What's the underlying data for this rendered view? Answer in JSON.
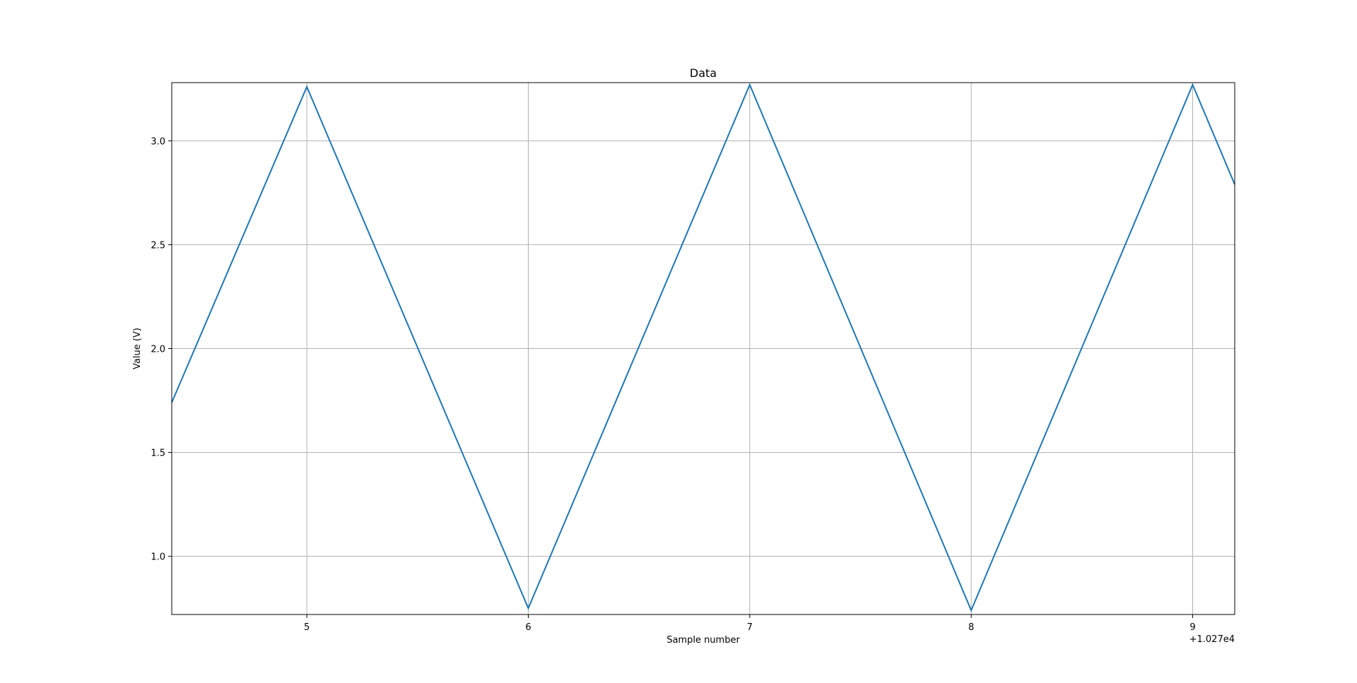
{
  "chart_data": {
    "type": "line",
    "title": "Data",
    "xlabel": "Sample number",
    "ylabel": "Value (V)",
    "x_offset_label": "+1.027e4",
    "xlim": [
      10274.39,
      10279.19
    ],
    "ylim": [
      0.72,
      3.28
    ],
    "x_ticks": [
      {
        "value": 10275,
        "label": "5"
      },
      {
        "value": 10276,
        "label": "6"
      },
      {
        "value": 10277,
        "label": "7"
      },
      {
        "value": 10278,
        "label": "8"
      },
      {
        "value": 10279,
        "label": "9"
      }
    ],
    "y_ticks": [
      {
        "value": 1.0,
        "label": "1.0"
      },
      {
        "value": 1.5,
        "label": "1.5"
      },
      {
        "value": 2.0,
        "label": "2.0"
      },
      {
        "value": 2.5,
        "label": "2.5"
      },
      {
        "value": 3.0,
        "label": "3.0"
      }
    ],
    "grid": true,
    "series": [
      {
        "color": "#1f77b4",
        "x": [
          10274.39,
          10275,
          10276,
          10277,
          10278,
          10279,
          10279.19
        ],
        "y": [
          1.74,
          3.26,
          0.75,
          3.27,
          0.74,
          3.27,
          2.79
        ]
      }
    ]
  }
}
